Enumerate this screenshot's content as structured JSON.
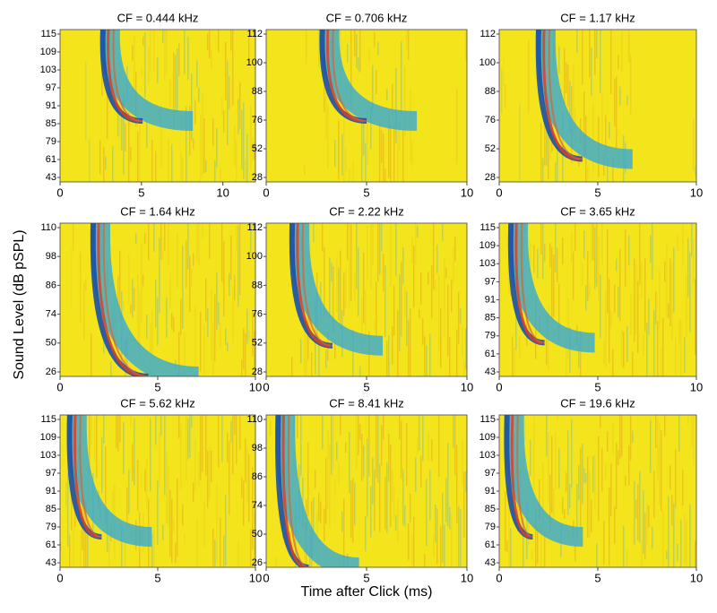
{
  "chart_data": [
    {
      "type": "heatmap",
      "title": "CF = 0.444 kHz",
      "yticks": [
        115,
        109,
        103,
        97,
        91,
        85,
        79,
        61,
        43
      ],
      "xlim": [
        0,
        12
      ],
      "xticks": [
        0,
        5,
        10
      ]
    },
    {
      "type": "heatmap",
      "title": "CF = 0.706 kHz",
      "yticks": [
        112,
        100,
        88,
        76,
        52,
        28
      ],
      "xlim": [
        0,
        10
      ],
      "xticks": [
        0,
        5,
        10
      ]
    },
    {
      "type": "heatmap",
      "title": "CF = 1.17 kHz",
      "yticks": [
        112,
        100,
        88,
        76,
        52,
        28
      ],
      "xlim": [
        0,
        10
      ],
      "xticks": [
        0,
        5,
        10
      ]
    },
    {
      "type": "heatmap",
      "title": "CF = 1.64 kHz",
      "ylabel": "Sound Level (dB pSPL)",
      "yticks": [
        110,
        98,
        86,
        74,
        50,
        26
      ],
      "xlim": [
        0,
        10
      ],
      "xticks": [
        0,
        5,
        10
      ]
    },
    {
      "type": "heatmap",
      "title": "CF = 2.22 kHz",
      "yticks": [
        112,
        100,
        88,
        76,
        52,
        28
      ],
      "xlim": [
        0,
        10
      ],
      "xticks": [
        0,
        5,
        10
      ]
    },
    {
      "type": "heatmap",
      "title": "CF = 3.65 kHz",
      "yticks": [
        115,
        109,
        103,
        97,
        91,
        85,
        79,
        61,
        43
      ],
      "xlim": [
        0,
        10
      ],
      "xticks": [
        0,
        5,
        10
      ]
    },
    {
      "type": "heatmap",
      "title": "CF = 5.62 kHz",
      "yticks": [
        115,
        109,
        103,
        97,
        91,
        85,
        79,
        61,
        43
      ],
      "xlim": [
        0,
        10
      ],
      "xticks": [
        0,
        5,
        10
      ]
    },
    {
      "type": "heatmap",
      "title": "CF = 8.41 kHz",
      "xlabel": "Time after Click (ms)",
      "yticks": [
        110,
        98,
        86,
        74,
        50,
        26
      ],
      "xlim": [
        0,
        10
      ],
      "xticks": [
        0,
        5,
        10
      ]
    },
    {
      "type": "heatmap",
      "title": "CF = 19.6 kHz",
      "yticks": [
        115,
        109,
        103,
        97,
        91,
        85,
        79,
        61,
        43
      ],
      "xlim": [
        0,
        10
      ],
      "xticks": [
        0,
        5,
        10
      ]
    }
  ]
}
